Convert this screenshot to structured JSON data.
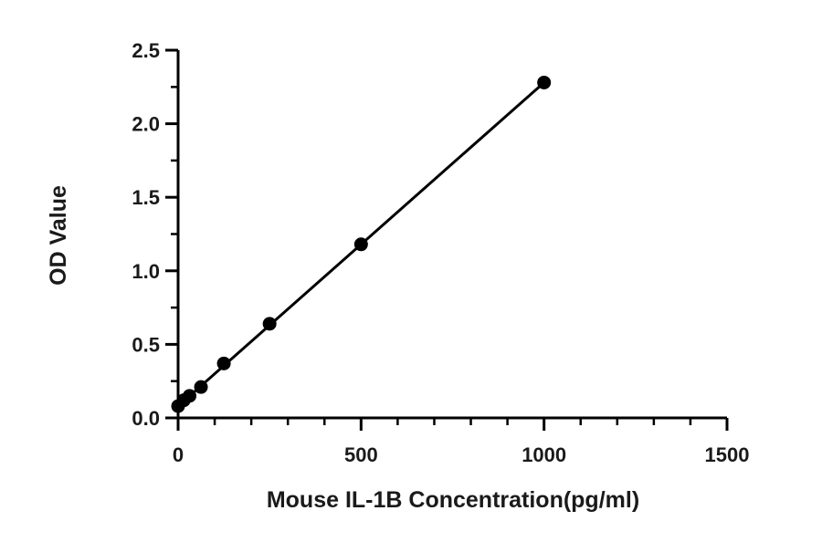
{
  "chart_data": {
    "type": "scatter",
    "xlabel": "Mouse IL-1B Concentration(pg/ml)",
    "ylabel": "OD Value",
    "xlim": [
      0,
      1500
    ],
    "ylim": [
      0,
      2.5
    ],
    "x_ticks": [
      "0",
      "500",
      "1000",
      "1500"
    ],
    "y_ticks": [
      "0.0",
      "0.5",
      "1.0",
      "1.5",
      "2.0",
      "2.5"
    ],
    "x_tick_values": [
      0,
      500,
      1000,
      1500
    ],
    "y_tick_values": [
      0,
      0.5,
      1.0,
      1.5,
      2.0,
      2.5
    ],
    "x_minor_step": 100,
    "y_minor_step": 0.25,
    "grid": false,
    "trendline": {
      "kind": "linear",
      "from": [
        0,
        0.08
      ],
      "to": [
        1000,
        2.28
      ]
    },
    "series": [
      {
        "x": [
          0,
          15.6,
          31.25,
          62.5,
          125,
          250,
          500,
          1000
        ],
        "y": [
          0.08,
          0.12,
          0.15,
          0.21,
          0.37,
          0.64,
          1.18,
          2.28
        ]
      }
    ],
    "colors": {
      "marker": "#000000",
      "line": "#000000",
      "axis": "#000000"
    }
  }
}
